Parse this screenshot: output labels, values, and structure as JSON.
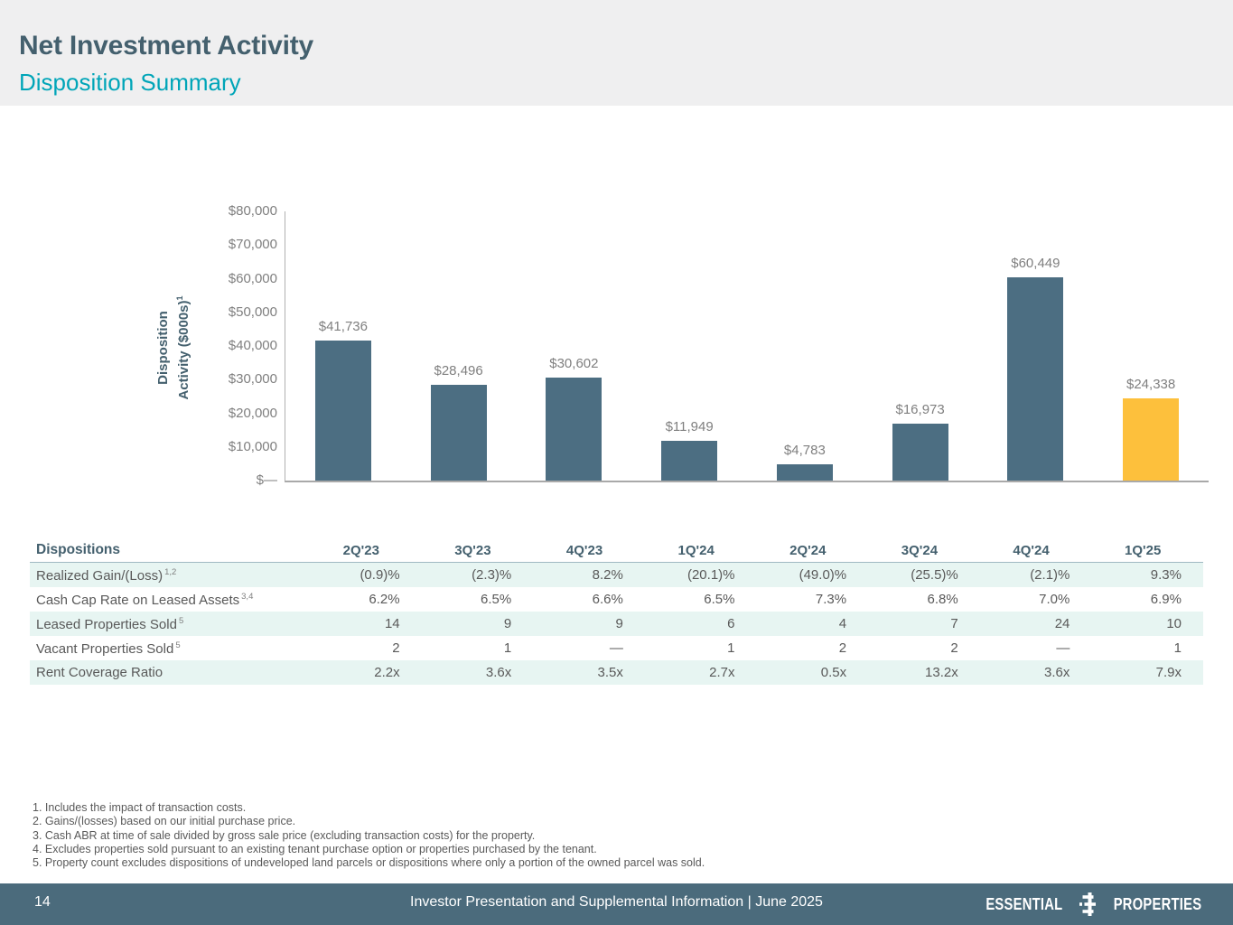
{
  "header": {
    "title": "Net Investment Activity",
    "subtitle": "Disposition Summary"
  },
  "chart_data": {
    "type": "bar",
    "title": "",
    "ylabel_line1": "Disposition",
    "ylabel_line2": "Activity ($000s)",
    "ylabel_sup": "1",
    "categories": [
      "2Q'23",
      "3Q'23",
      "4Q'23",
      "1Q'24",
      "2Q'24",
      "3Q'24",
      "4Q'24",
      "1Q'25"
    ],
    "values": [
      41736,
      28496,
      30602,
      11949,
      4783,
      16973,
      60449,
      24338
    ],
    "labels": [
      "$41,736",
      "$28,496",
      "$30,602",
      "$11,949",
      "$4,783",
      "$16,973",
      "$60,449",
      "$24,338"
    ],
    "ylim": [
      0,
      80000
    ],
    "ytick_labels": [
      "$80,000",
      "$70,000",
      "$60,000",
      "$50,000",
      "$40,000",
      "$30,000",
      "$20,000",
      "$10,000",
      "$—"
    ],
    "bar_colors": [
      "#4C6E82",
      "#4C6E82",
      "#4C6E82",
      "#4C6E82",
      "#4C6E82",
      "#4C6E82",
      "#4C6E82",
      "#FDC03C"
    ],
    "grid": false,
    "legend": "none"
  },
  "table": {
    "title_col": "Dispositions",
    "columns": [
      "2Q'23",
      "3Q'23",
      "4Q'23",
      "1Q'24",
      "2Q'24",
      "3Q'24",
      "4Q'24",
      "1Q'25"
    ],
    "rows": [
      {
        "label": "Realized Gain/(Loss)",
        "sup": "1,2",
        "values": [
          "(0.9)%",
          "(2.3)%",
          "8.2%",
          "(20.1)%",
          "(49.0)%",
          "(25.5)%",
          "(2.1)%",
          "9.3%"
        ]
      },
      {
        "label": "Cash Cap Rate on Leased Assets",
        "sup": "3,4",
        "values": [
          "6.2%",
          "6.5%",
          "6.6%",
          "6.5%",
          "7.3%",
          "6.8%",
          "7.0%",
          "6.9%"
        ]
      },
      {
        "label": "Leased Properties Sold",
        "sup": "5",
        "values": [
          "14",
          "9",
          "9",
          "6",
          "4",
          "7",
          "24",
          "10"
        ]
      },
      {
        "label": "Vacant Properties Sold",
        "sup": "5",
        "values": [
          "2",
          "1",
          "—",
          "1",
          "2",
          "2",
          "—",
          "1"
        ]
      },
      {
        "label": "Rent Coverage Ratio",
        "sup": "",
        "values": [
          "2.2x",
          "3.6x",
          "3.5x",
          "2.7x",
          "0.5x",
          "13.2x",
          "3.6x",
          "7.9x"
        ]
      }
    ]
  },
  "footnotes": [
    "1. Includes the impact of transaction costs.",
    "2. Gains/(losses) based on our initial purchase price.",
    "3. Cash ABR at time of sale divided by gross sale price (excluding transaction costs) for the property.",
    "4. Excludes properties sold pursuant to an existing tenant purchase option or properties purchased by the tenant.",
    "5. Property count excludes dispositions of undeveloped land parcels or dispositions where only a portion of the owned parcel was sold."
  ],
  "footer": {
    "page_number": "14",
    "center_text": "Investor Presentation and Supplemental Information | June 2025",
    "logo_left": "ESSENTIAL",
    "logo_right": "PROPERTIES"
  },
  "colors": {
    "header_band_bg": "#EFEFF0",
    "title_slate": "#44606E",
    "subtitle_teal": "#00A5B8",
    "bar_slate": "#4C6E82",
    "bar_highlight_yellow": "#FDC03C",
    "axis_text_gray": "#7F7F7F",
    "table_alt_row_bg": "#E7F5F2",
    "footer_bg": "#4B6B7C"
  }
}
